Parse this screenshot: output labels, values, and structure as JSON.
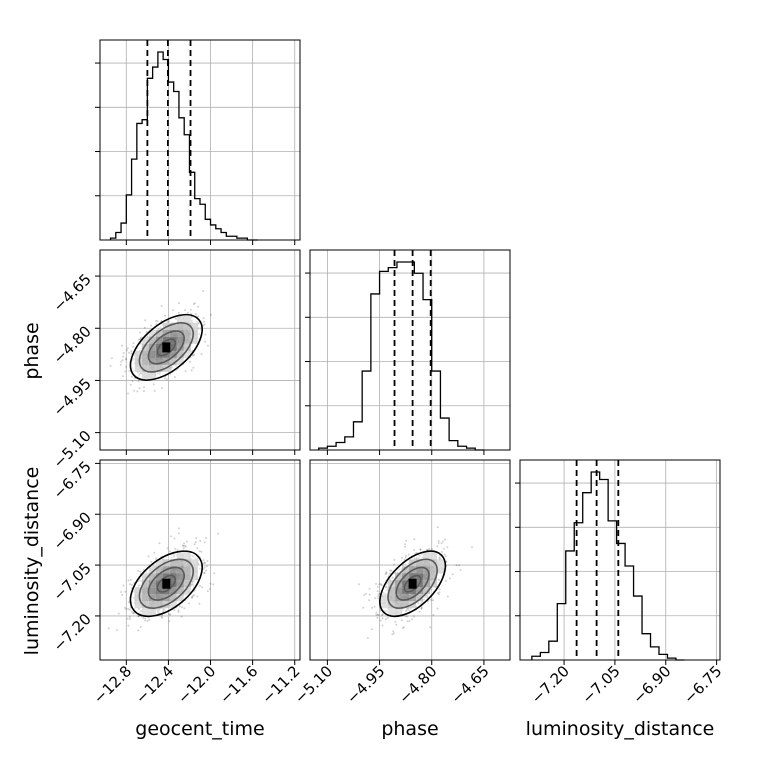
{
  "chart_data": {
    "type": "corner",
    "parameters": [
      "geocent_time",
      "phase",
      "luminosity_distance"
    ],
    "ranges": {
      "geocent_time": [
        -13.05,
        -11.15
      ],
      "phase": [
        -5.15,
        -4.575
      ],
      "luminosity_distance": [
        -7.33,
        -6.74
      ]
    },
    "ticks": {
      "geocent_time": {
        "values": [
          -12.8,
          -12.4,
          -12.0,
          -11.6,
          -11.2
        ],
        "labels": [
          "−12.8",
          "−12.4",
          "−12.0",
          "−11.6",
          "−11.2"
        ]
      },
      "phase": {
        "values": [
          -5.1,
          -4.95,
          -4.8,
          -4.65
        ],
        "labels": [
          "−5.10",
          "−4.95",
          "−4.80",
          "−4.65"
        ]
      },
      "luminosity_distance": {
        "values": [
          -7.2,
          -7.05,
          -6.9,
          -6.75
        ],
        "labels": [
          "−7.20",
          "−7.05",
          "−6.90",
          "−6.75"
        ]
      }
    },
    "grid": true,
    "histograms": {
      "geocent_time": {
        "bins": [
          -12.95,
          -12.9,
          -12.85,
          -12.8,
          -12.75,
          -12.7,
          -12.65,
          -12.6,
          -12.55,
          -12.5,
          -12.45,
          -12.4,
          -12.35,
          -12.3,
          -12.25,
          -12.2,
          -12.15,
          -12.1,
          -12.05,
          -12.0,
          -11.95,
          -11.9,
          -11.85,
          -11.8,
          -11.75,
          -11.7,
          -11.65,
          -11.6,
          -11.55
        ],
        "counts": [
          1,
          4,
          9,
          24,
          43,
          62,
          64,
          86,
          92,
          100,
          96,
          84,
          79,
          65,
          56,
          36,
          22,
          19,
          11,
          8,
          6,
          4,
          2,
          2,
          1,
          1,
          0,
          0
        ],
        "quantiles": [
          -12.6,
          -12.405,
          -12.19
        ]
      },
      "phase": {
        "bins": [
          -5.125,
          -5.1,
          -5.075,
          -5.05,
          -5.025,
          -5.0,
          -4.975,
          -4.95,
          -4.925,
          -4.9,
          -4.875,
          -4.85,
          -4.825,
          -4.8,
          -4.775,
          -4.75,
          -4.725,
          -4.7,
          -4.675,
          -4.65
        ],
        "counts": [
          1,
          2,
          4,
          7,
          15,
          42,
          83,
          95,
          97,
          100,
          100,
          94,
          80,
          42,
          17,
          5,
          2,
          1,
          0
        ],
        "quantiles": [
          -4.907,
          -4.855,
          -4.803
        ]
      },
      "luminosity_distance": {
        "bins": [
          -7.295,
          -7.27,
          -7.245,
          -7.22,
          -7.195,
          -7.17,
          -7.145,
          -7.12,
          -7.095,
          -7.07,
          -7.045,
          -7.02,
          -6.995,
          -6.97,
          -6.945,
          -6.92,
          -6.895,
          -6.87,
          -6.845
        ],
        "counts": [
          2,
          4,
          10,
          30,
          58,
          73,
          89,
          100,
          96,
          74,
          62,
          50,
          34,
          14,
          7,
          3,
          1,
          0
        ],
        "quantiles": [
          -7.163,
          -7.104,
          -7.04
        ]
      }
    },
    "pairs": [
      {
        "x": "geocent_time",
        "y": "phase",
        "mean": [
          -12.42,
          -4.855
        ],
        "sd": [
          0.17,
          0.047
        ],
        "rho": 0.55
      },
      {
        "x": "geocent_time",
        "y": "luminosity_distance",
        "mean": [
          -12.42,
          -7.105
        ],
        "sd": [
          0.17,
          0.048
        ],
        "rho": 0.5
      },
      {
        "x": "phase",
        "y": "luminosity_distance",
        "mean": [
          -4.855,
          -7.105
        ],
        "sd": [
          0.047,
          0.048
        ],
        "rho": 0.55
      }
    ],
    "contour_levels": [
      "0.118",
      "0.393",
      "0.675",
      "0.865"
    ]
  }
}
